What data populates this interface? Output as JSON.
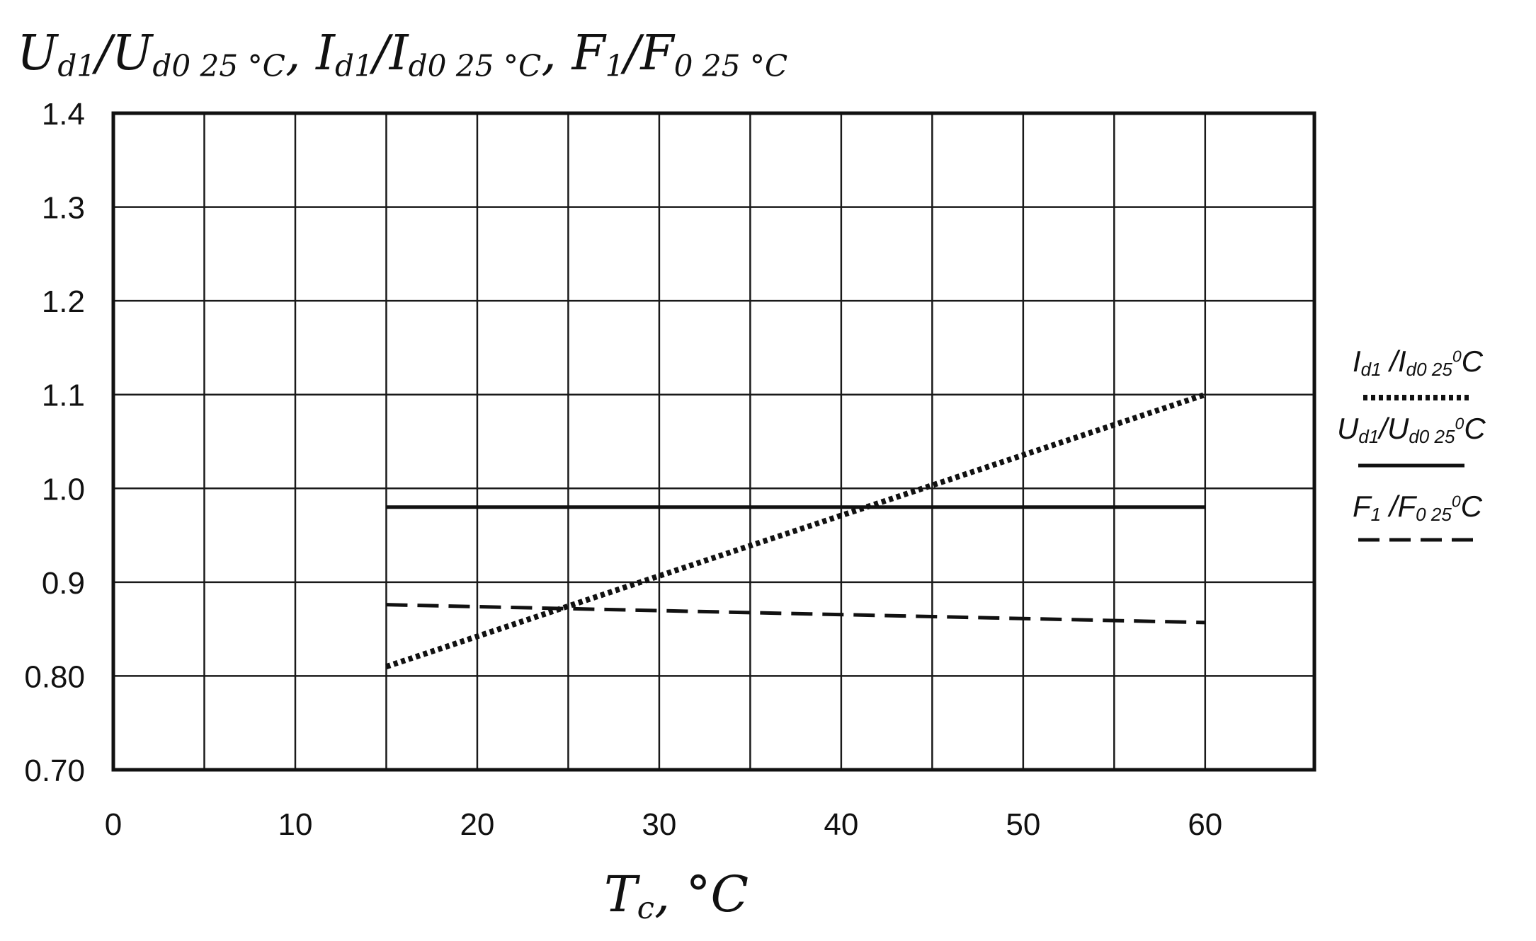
{
  "chart_data": {
    "type": "line",
    "ylabel_parts": [
      {
        "main": "U",
        "sub": "d1"
      },
      {
        "main": "/U",
        "sub": "d0 25 °C"
      },
      {
        "main": ", I",
        "sub": "d1"
      },
      {
        "main": "/I",
        "sub": "d0 25 °C"
      },
      {
        "main": ", F",
        "sub": "1"
      },
      {
        "main": "/F",
        "sub": "0 25 °C"
      }
    ],
    "xlabel_parts": [
      {
        "main": "T",
        "sub": "c"
      },
      {
        "main": ", °C",
        "sub": ""
      }
    ],
    "xlim": [
      0,
      66
    ],
    "ylim": [
      0.7,
      1.4
    ],
    "x_ticks": [
      0,
      10,
      20,
      30,
      40,
      50,
      60
    ],
    "x_tick_labels": [
      "0",
      "10",
      "20",
      "30",
      "40",
      "50",
      "60"
    ],
    "y_ticks": [
      0.7,
      0.8,
      0.9,
      1.0,
      1.1,
      1.2,
      1.3,
      1.4
    ],
    "y_tick_labels": [
      "0.70",
      "0.80",
      "0.9",
      "1.0",
      "1.1",
      "1.2",
      "1.3",
      "1.4"
    ],
    "x_grid": [
      0,
      5,
      10,
      15,
      20,
      25,
      30,
      35,
      40,
      45,
      50,
      55,
      60,
      66
    ],
    "y_grid": [
      0.7,
      0.8,
      0.9,
      1.0,
      1.1,
      1.2,
      1.3,
      1.4
    ],
    "grid": true,
    "legend_position": "right",
    "series": [
      {
        "name_parts": [
          {
            "main": "I",
            "sub": "d1"
          },
          {
            "main": " /I",
            "sub": "d0 25"
          },
          {
            "main": "",
            "sup": "0"
          },
          {
            "main": "C",
            "sub": ""
          }
        ],
        "style": "dotted",
        "color": "#111111",
        "x": [
          15,
          60
        ],
        "y": [
          0.81,
          1.1
        ]
      },
      {
        "name_parts": [
          {
            "main": "U",
            "sub": "d1"
          },
          {
            "main": "/U",
            "sub": "d0 25"
          },
          {
            "main": "",
            "sup": "0"
          },
          {
            "main": "C",
            "sub": ""
          }
        ],
        "style": "solid",
        "color": "#111111",
        "x": [
          15,
          60
        ],
        "y": [
          0.98,
          0.98
        ]
      },
      {
        "name_parts": [
          {
            "main": "F",
            "sub": "1"
          },
          {
            "main": " /F",
            "sub": "0 25"
          },
          {
            "main": "",
            "sup": "0"
          },
          {
            "main": "C",
            "sub": ""
          }
        ],
        "style": "dashed",
        "color": "#111111",
        "x": [
          15,
          60
        ],
        "y": [
          0.876,
          0.857
        ]
      }
    ]
  }
}
